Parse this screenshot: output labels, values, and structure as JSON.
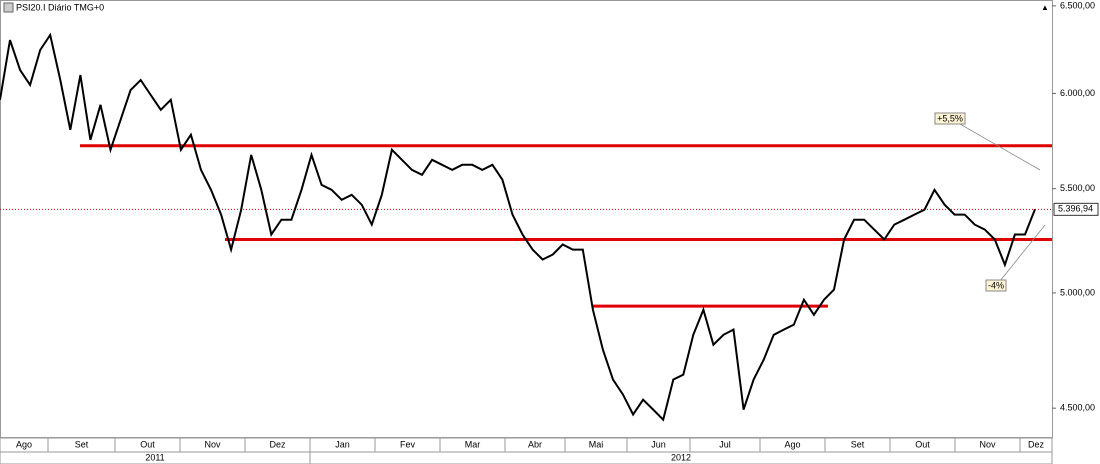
{
  "chart_data": {
    "type": "line",
    "title": "PSI20.I Diário TMG+0",
    "months": [
      "Ago",
      "Set",
      "Out",
      "Nov",
      "Dez",
      "Jan",
      "Fev",
      "Mar",
      "Abr",
      "Mai",
      "Jun",
      "Jul",
      "Ago",
      "Set",
      "Out",
      "Nov",
      "Dez"
    ],
    "years": [
      "2011",
      "2012"
    ],
    "log_scale": true,
    "ylim": [
      4379,
      6535
    ],
    "yticks": [
      {
        "value": 4500,
        "label": "4.500,00"
      },
      {
        "value": 5000,
        "label": "5.000,00"
      },
      {
        "value": 5500,
        "label": "5.500,00"
      },
      {
        "value": 6000,
        "label": "6.000,00"
      },
      {
        "value": 6500,
        "label": "6.500,00"
      }
    ],
    "series": [
      {
        "color": "#000000",
        "values": [
          5965,
          6300,
          6130,
          6047,
          6243,
          6329,
          6074,
          5804,
          6102,
          5751,
          5938,
          5699,
          5857,
          6019,
          6074,
          5992,
          5911,
          5965,
          5699,
          5778,
          5595,
          5494,
          5371,
          5202,
          5395,
          5672,
          5494,
          5274,
          5346,
          5346,
          5494,
          5672,
          5519,
          5494,
          5444,
          5469,
          5420,
          5322,
          5469,
          5699,
          5647,
          5595,
          5570,
          5647,
          5621,
          5595,
          5621,
          5621,
          5595,
          5621,
          5545,
          5371,
          5274,
          5202,
          5155,
          5178,
          5226,
          5202,
          5202,
          4924,
          4747,
          4619,
          4556,
          4474,
          4535,
          4494,
          4453,
          4619,
          4640,
          4812,
          4924,
          4769,
          4812,
          4835,
          4494,
          4619,
          4704,
          4812,
          4835,
          4857,
          4969,
          4901,
          4969,
          5015,
          5250,
          5346,
          5346,
          5298,
          5250,
          5322,
          5346,
          5371,
          5395,
          5494,
          5420,
          5371,
          5371,
          5322,
          5298,
          5250,
          5130,
          5274,
          5274,
          5396.94
        ]
      }
    ],
    "levels": [
      {
        "value": 5720,
        "color": "#e00000"
      },
      {
        "value": 5250,
        "color": "#e00000"
      },
      {
        "value": 4940,
        "color": "#e00000"
      }
    ],
    "last_price": {
      "value": 5396.94,
      "label": "5.396,94"
    },
    "annotations": [
      "+5,5%",
      "-4%"
    ]
  }
}
